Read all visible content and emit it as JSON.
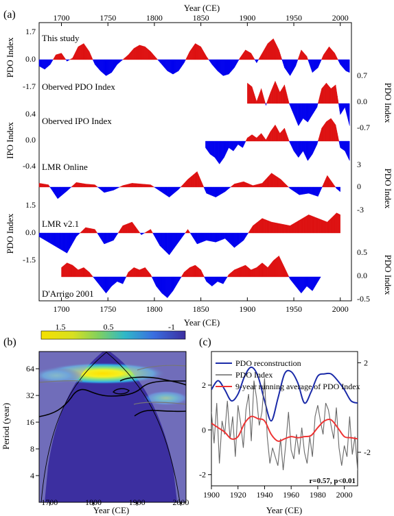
{
  "figure": {
    "colors": {
      "positive": "#dd1111",
      "negative": "#0000ee",
      "recon": "#1a2aa8",
      "index": "#666666",
      "running": "#ee3333",
      "wavelet_bg": "#3c2fa0",
      "coi": "#9aa0d0"
    }
  },
  "panel_a": {
    "letter": "(a)",
    "top_axis_label": "Year (CE)",
    "bottom_axis_label": "Year (CE)",
    "x_ticks": [
      "1700",
      "1750",
      "1800",
      "1850",
      "1900",
      "1950",
      "2000"
    ],
    "left_labels": [
      "PDO Index",
      "IPO Index",
      "PDO Index"
    ],
    "right_labels": [
      "PDO Index",
      "PDO Index",
      "PDO Index"
    ],
    "left_ticks_1": [
      "1.7",
      "0.0",
      "-1.7"
    ],
    "left_ticks_2": [
      "0.4",
      "0.0",
      "-0.4"
    ],
    "left_ticks_3": [
      "1.5",
      "0.0",
      "-1.5"
    ],
    "right_ticks_1": [
      "0.7",
      "0.0",
      "-0.7"
    ],
    "right_ticks_2": [
      "3",
      "0",
      "-3"
    ],
    "right_ticks_3": [
      "0.5",
      "0.0",
      "-0.5"
    ],
    "series_names": [
      "This study",
      "Oberved PDO Index",
      "Oberved IPO Index",
      "LMR Online",
      "LMR v2.1",
      "D'Arrigo 2001"
    ]
  },
  "panel_b": {
    "letter": "(b)",
    "xlabel": "Year (CE)",
    "ylabel": "Period (year)",
    "x_ticks": [
      "1700",
      "1800",
      "1900",
      "2000"
    ],
    "y_ticks": [
      "64",
      "32",
      "16",
      "8",
      "4"
    ],
    "colorbar_ticks": [
      "1.5",
      "0.5",
      "-1"
    ]
  },
  "panel_c": {
    "letter": "(c)",
    "xlabel": "Year (CE)",
    "x_ticks": [
      "1900",
      "1920",
      "1940",
      "1960",
      "1980",
      "2000"
    ],
    "left_ticks": [
      "2",
      "0",
      "-2"
    ],
    "right_ticks": [
      "2",
      "-2"
    ],
    "legend": [
      "PDO reconstruction",
      "PDO Index",
      "9-year running average of PDO Index"
    ],
    "stat": "r=0.57, p<0.01"
  },
  "chart_data": [
    {
      "type": "area",
      "title": "(a)",
      "xlabel": "Year (CE)",
      "xlim": [
        1676,
        2012
      ],
      "series": [
        {
          "name": "This study",
          "ylabel": "PDO Index",
          "ylim": [
            -1.7,
            1.7
          ],
          "x": [
            1676,
            1682,
            1688,
            1694,
            1700,
            1706,
            1712,
            1718,
            1724,
            1730,
            1736,
            1742,
            1748,
            1754,
            1760,
            1766,
            1772,
            1778,
            1784,
            1790,
            1796,
            1802,
            1808,
            1814,
            1820,
            1826,
            1832,
            1838,
            1844,
            1850,
            1856,
            1862,
            1868,
            1874,
            1880,
            1886,
            1892,
            1898,
            1904,
            1910,
            1916,
            1922,
            1928,
            1934,
            1940,
            1946,
            1952,
            1958,
            1964,
            1970,
            1976,
            1982,
            1988,
            1994,
            2000,
            2006,
            2010
          ],
          "y": [
            -0.4,
            -0.6,
            -0.3,
            0.3,
            0.4,
            -0.1,
            0.1,
            0.8,
            1.0,
            0.5,
            -0.3,
            -0.7,
            -1.0,
            -0.8,
            -0.3,
            0.0,
            0.3,
            0.7,
            0.9,
            0.8,
            0.5,
            0.1,
            -0.3,
            -0.7,
            -0.9,
            -0.7,
            -0.2,
            0.5,
            1.0,
            0.8,
            0.2,
            -0.3,
            -0.7,
            -1.0,
            -0.9,
            -0.5,
            0.1,
            0.6,
            0.4,
            -0.2,
            0.4,
            1.0,
            1.3,
            0.6,
            -0.5,
            -1.0,
            -0.4,
            0.6,
            0.2,
            -0.8,
            -0.5,
            0.3,
            0.8,
            0.4,
            -0.3,
            -0.7,
            -0.8
          ]
        },
        {
          "name": "Oberved PDO Index",
          "ylabel": "PDO Index",
          "ylim": [
            -0.7,
            0.7
          ],
          "x": [
            1900,
            1905,
            1910,
            1915,
            1920,
            1925,
            1930,
            1935,
            1940,
            1945,
            1950,
            1955,
            1960,
            1965,
            1970,
            1975,
            1980,
            1985,
            1990,
            1995,
            2000,
            2005,
            2010
          ],
          "y": [
            0.55,
            0.45,
            0.05,
            0.4,
            -0.05,
            0.3,
            0.6,
            0.3,
            0.5,
            0.0,
            -0.3,
            -0.6,
            -0.4,
            -0.5,
            -0.3,
            -0.1,
            0.4,
            0.55,
            0.4,
            0.5,
            -0.3,
            -0.1,
            -0.6
          ]
        },
        {
          "name": "Oberved IPO Index",
          "ylabel": "IPO Index",
          "ylim": [
            -0.4,
            0.4
          ],
          "x": [
            1855,
            1860,
            1865,
            1870,
            1875,
            1880,
            1885,
            1890,
            1895,
            1900,
            1905,
            1910,
            1915,
            1920,
            1925,
            1930,
            1935,
            1940,
            1945,
            1950,
            1955,
            1960,
            1965,
            1970,
            1975,
            1980,
            1985,
            1990,
            1995,
            2000,
            2005,
            2010
          ],
          "y": [
            -0.1,
            -0.2,
            -0.25,
            -0.35,
            -0.25,
            -0.1,
            -0.15,
            -0.05,
            -0.1,
            0.05,
            0.1,
            0.05,
            0.12,
            0.02,
            0.15,
            0.25,
            0.12,
            0.2,
            0.0,
            -0.15,
            -0.25,
            -0.15,
            -0.3,
            -0.2,
            -0.05,
            0.2,
            0.3,
            0.35,
            0.25,
            -0.1,
            -0.15,
            -0.3
          ]
        },
        {
          "name": "LMR Online",
          "ylabel": "PDO Index",
          "ylim": [
            -3,
            3
          ],
          "x": [
            1676,
            1686,
            1696,
            1706,
            1716,
            1726,
            1736,
            1746,
            1756,
            1766,
            1776,
            1786,
            1796,
            1806,
            1816,
            1826,
            1836,
            1846,
            1856,
            1866,
            1876,
            1886,
            1896,
            1906,
            1916,
            1926,
            1936,
            1946,
            1956,
            1966,
            1976,
            1986,
            1996,
            2000
          ],
          "y": [
            0.5,
            0.3,
            -1.5,
            -0.5,
            0.6,
            0.4,
            0.3,
            -0.7,
            -0.4,
            0.2,
            0.5,
            0.4,
            0.3,
            -0.5,
            -1.3,
            -0.3,
            1.0,
            2.0,
            -0.8,
            -1.3,
            -0.6,
            0.4,
            0.7,
            0.2,
            0.5,
            1.8,
            1.0,
            -0.2,
            -1.0,
            -0.8,
            -1.2,
            1.5,
            -0.2,
            -0.6
          ]
        },
        {
          "name": "LMR v2.1",
          "ylabel": "PDO Index",
          "ylim": [
            -1.5,
            1.5
          ],
          "x": [
            1676,
            1686,
            1696,
            1706,
            1716,
            1726,
            1736,
            1746,
            1756,
            1766,
            1776,
            1786,
            1796,
            1806,
            1816,
            1826,
            1836,
            1846,
            1856,
            1866,
            1876,
            1886,
            1896,
            1906,
            1916,
            1926,
            1936,
            1946,
            1956,
            1966,
            1976,
            1986,
            1996,
            2000
          ],
          "y": [
            -0.2,
            -0.5,
            -0.8,
            -1.1,
            -0.2,
            0.3,
            0.2,
            -0.6,
            -0.4,
            0.4,
            0.6,
            -0.1,
            0.2,
            -0.7,
            -1.2,
            -0.5,
            0.2,
            -0.6,
            -0.4,
            -0.5,
            -0.3,
            -0.8,
            -0.4,
            0.4,
            0.8,
            0.6,
            0.5,
            0.4,
            0.7,
            1.0,
            0.8,
            0.6,
            1.1,
            1.0
          ]
        },
        {
          "name": "D'Arrigo 2001",
          "ylabel": "PDO Index",
          "ylim": [
            -0.5,
            0.5
          ],
          "x": [
            1700,
            1706,
            1712,
            1718,
            1724,
            1730,
            1736,
            1742,
            1748,
            1754,
            1760,
            1766,
            1772,
            1778,
            1784,
            1790,
            1796,
            1802,
            1808,
            1814,
            1820,
            1826,
            1832,
            1838,
            1844,
            1850,
            1856,
            1862,
            1868,
            1874,
            1880,
            1886,
            1892,
            1898,
            1904,
            1910,
            1916,
            1922,
            1928,
            1934,
            1940,
            1946,
            1952,
            1958,
            1964,
            1970,
            1976,
            1979
          ],
          "y": [
            0.2,
            0.3,
            0.25,
            0.15,
            0.2,
            0.1,
            -0.05,
            -0.2,
            -0.35,
            -0.2,
            -0.1,
            -0.15,
            0.1,
            0.2,
            0.15,
            0.2,
            0.05,
            -0.2,
            -0.35,
            -0.45,
            -0.3,
            -0.1,
            0.1,
            0.2,
            0.25,
            0.15,
            -0.1,
            -0.2,
            -0.1,
            -0.15,
            0.05,
            0.15,
            0.2,
            0.25,
            0.15,
            0.2,
            0.3,
            0.2,
            0.35,
            0.45,
            0.2,
            -0.05,
            -0.2,
            -0.35,
            -0.2,
            -0.3,
            -0.1,
            0.0
          ]
        }
      ]
    },
    {
      "type": "heatmap",
      "title": "(b)",
      "xlabel": "Year (CE)",
      "ylabel": "Period (year)",
      "xlim": [
        1676,
        2012
      ],
      "y_scale": "log2",
      "ylim": [
        2,
        100
      ],
      "colorbar": {
        "ticks": [
          1.5,
          0.5,
          -1
        ]
      },
      "features": [
        {
          "center_year": 1800,
          "period": 64,
          "power": 1.7
        },
        {
          "center_year": 1710,
          "period": 64,
          "power": 0.7
        },
        {
          "center_year": 1940,
          "period": 30,
          "power": 0.9
        }
      ]
    },
    {
      "type": "line",
      "title": "(c)",
      "xlabel": "Year (CE)",
      "xlim": [
        1900,
        2010
      ],
      "left_ylim": [
        -2.5,
        3.5
      ],
      "right_ylim": [
        -3.5,
        2.5
      ],
      "series": [
        {
          "name": "PDO reconstruction",
          "axis": "right",
          "x": [
            1900,
            1905,
            1910,
            1915,
            1920,
            1925,
            1930,
            1935,
            1940,
            1945,
            1950,
            1955,
            1960,
            1965,
            1970,
            1975,
            1980,
            1985,
            1990,
            1995,
            2000,
            2005,
            2010
          ],
          "y": [
            0.8,
            1.2,
            0.8,
            0.3,
            0.6,
            1.4,
            1.8,
            1.4,
            0.3,
            -0.6,
            0.4,
            1.5,
            1.6,
            1.1,
            0.2,
            0.7,
            1.4,
            1.5,
            1.5,
            1.2,
            0.8,
            0.3,
            0.2
          ]
        },
        {
          "name": "PDO Index",
          "axis": "left",
          "x": [
            1900,
            1902,
            1904,
            1906,
            1908,
            1910,
            1912,
            1914,
            1916,
            1918,
            1920,
            1922,
            1924,
            1926,
            1928,
            1930,
            1932,
            1934,
            1936,
            1938,
            1940,
            1942,
            1944,
            1946,
            1948,
            1950,
            1952,
            1954,
            1956,
            1958,
            1960,
            1962,
            1964,
            1966,
            1968,
            1970,
            1972,
            1974,
            1976,
            1978,
            1980,
            1982,
            1984,
            1986,
            1988,
            1990,
            1992,
            1994,
            1996,
            1998,
            2000,
            2002,
            2004,
            2006,
            2008,
            2010
          ],
          "y": [
            0.8,
            -0.6,
            1.2,
            -1.5,
            0.4,
            -0.2,
            1.3,
            -0.4,
            0.6,
            -1.2,
            1.1,
            0.3,
            -0.8,
            0.9,
            1.6,
            -0.5,
            2.2,
            1.4,
            0.2,
            0.8,
            2.3,
            -0.3,
            -1.5,
            -0.8,
            -1.2,
            -1.6,
            -0.4,
            -1.8,
            -0.6,
            0.8,
            -0.9,
            -1.3,
            -0.2,
            -1.1,
            0.1,
            -1.0,
            -1.5,
            -0.3,
            -1.2,
            0.6,
            1.1,
            0.4,
            -0.2,
            1.2,
            0.9,
            0.2,
            -0.4,
            1.0,
            -0.8,
            -1.6,
            -0.7,
            -1.2,
            0.6,
            -1.1,
            -0.3,
            -1.8
          ]
        },
        {
          "name": "9-year running average of PDO Index",
          "axis": "left",
          "x": [
            1900,
            1905,
            1910,
            1915,
            1920,
            1925,
            1930,
            1935,
            1940,
            1945,
            1950,
            1955,
            1960,
            1965,
            1970,
            1975,
            1980,
            1985,
            1990,
            1995,
            2000,
            2005,
            2010
          ],
          "y": [
            0.3,
            0.1,
            -0.1,
            -0.4,
            -0.3,
            0.3,
            0.6,
            0.5,
            0.4,
            -0.2,
            -0.5,
            -0.4,
            -0.3,
            -0.35,
            -0.3,
            -0.25,
            0.1,
            0.4,
            0.45,
            0.1,
            -0.3,
            -0.35,
            -0.4
          ]
        }
      ],
      "annotation": "r=0.57, p<0.01"
    }
  ]
}
